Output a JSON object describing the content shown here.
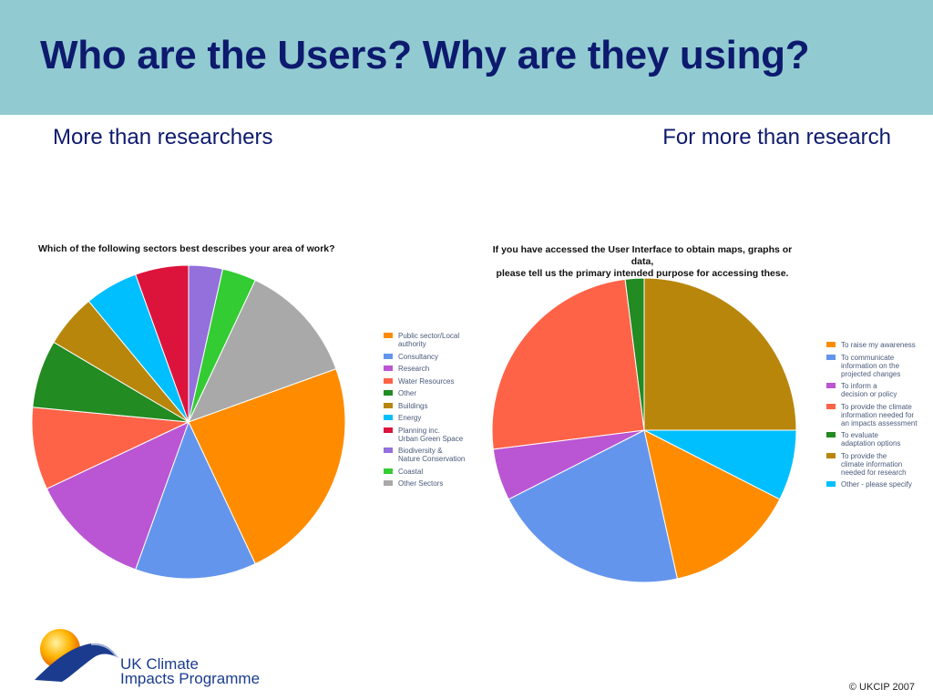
{
  "slide": {
    "title": "Who are the Users? Why are they using?",
    "subtitle_left": "More than researchers",
    "subtitle_right": "For more than research",
    "logo_text_line1": "UK Climate",
    "logo_text_line2": "Impacts Programme",
    "copyright": "© UKCIP 2007"
  },
  "chart_data": [
    {
      "type": "pie",
      "title": "Which of the following sectors best describes your area of work?",
      "start_at": "12 o'clock",
      "direction": "clockwise",
      "slices": [
        {
          "label": "Biodiversity & Nature Conservation",
          "value": 3.5,
          "color": "#9370db"
        },
        {
          "label": "Coastal",
          "value": 3.5,
          "color": "#33cc33"
        },
        {
          "label": "Other Sectors",
          "value": 12.5,
          "color": "#a9a9a9"
        },
        {
          "label": "Public sector/Local authority",
          "value": 23.5,
          "color": "#ff8c00"
        },
        {
          "label": "Consultancy",
          "value": 12.5,
          "color": "#6495ed"
        },
        {
          "label": "Research",
          "value": 12.5,
          "color": "#ba55d3"
        },
        {
          "label": "Water Resources",
          "value": 8.5,
          "color": "#ff6347"
        },
        {
          "label": "Other",
          "value": 7,
          "color": "#228b22"
        },
        {
          "label": "Buildings",
          "value": 5.5,
          "color": "#b8860b"
        },
        {
          "label": "Energy",
          "value": 5.5,
          "color": "#00bfff"
        },
        {
          "label": "Planning inc. Urban Green Space",
          "value": 5.5,
          "color": "#dc143c"
        }
      ],
      "legend_order": [
        "Public sector/Local authority",
        "Consultancy",
        "Research",
        "Water Resources",
        "Other",
        "Buildings",
        "Energy",
        "Planning inc. Urban Green Space",
        "Biodiversity & Nature Conservation",
        "Coastal",
        "Other Sectors"
      ],
      "legend_lines": [
        [
          "Public sector/Local",
          "authority"
        ],
        [
          "Consultancy"
        ],
        [
          "Research"
        ],
        [
          "Water Resources"
        ],
        [
          "Other"
        ],
        [
          "Buildings"
        ],
        [
          "Energy"
        ],
        [
          "Planning inc.",
          "Urban Green Space"
        ],
        [
          "Biodiversity &",
          "Nature Conservation"
        ],
        [
          "Coastal"
        ],
        [
          "Other Sectors"
        ]
      ],
      "legend_placement": "right"
    },
    {
      "type": "pie",
      "title": "If you have accessed the User Interface to obtain maps, graphs or data, please tell us the primary intended purpose for accessing these.",
      "title_lines": [
        "If you have accessed the User Interface to obtain maps, graphs or data,",
        "please tell us the primary intended purpose for accessing these."
      ],
      "start_at": "12 o'clock",
      "direction": "clockwise",
      "slices": [
        {
          "label": "To provide the climate information needed for research",
          "value": 25,
          "color": "#b8860b"
        },
        {
          "label": "Other - please specify",
          "value": 7.5,
          "color": "#00bfff"
        },
        {
          "label": "To raise my awareness",
          "value": 14,
          "color": "#ff8c00"
        },
        {
          "label": "To communicate information on the projected changes",
          "value": 21,
          "color": "#6495ed"
        },
        {
          "label": "To inform a decision or policy",
          "value": 5.5,
          "color": "#ba55d3"
        },
        {
          "label": "To provide the climate information needed for an impacts assessment",
          "value": 25,
          "color": "#ff6347"
        },
        {
          "label": "To evaluate adaptation options",
          "value": 2,
          "color": "#228b22"
        }
      ],
      "legend_order": [
        "To raise my awareness",
        "To communicate information on the projected changes",
        "To inform a decision or policy",
        "To provide the climate information needed for an impacts assessment",
        "To evaluate adaptation options",
        "To provide the climate information needed for research",
        "Other - please specify"
      ],
      "legend_lines": [
        [
          "To raise my awareness"
        ],
        [
          "To communicate",
          "information on the",
          "projected changes"
        ],
        [
          "To inform a",
          "decision or policy"
        ],
        [
          "To provide the climate",
          "information needed for",
          "an impacts assessment"
        ],
        [
          "To evaluate",
          "adaptation options"
        ],
        [
          "To provide the",
          "climate information",
          "needed for research"
        ],
        [
          "Other - please specify"
        ]
      ],
      "legend_placement": "right"
    }
  ]
}
